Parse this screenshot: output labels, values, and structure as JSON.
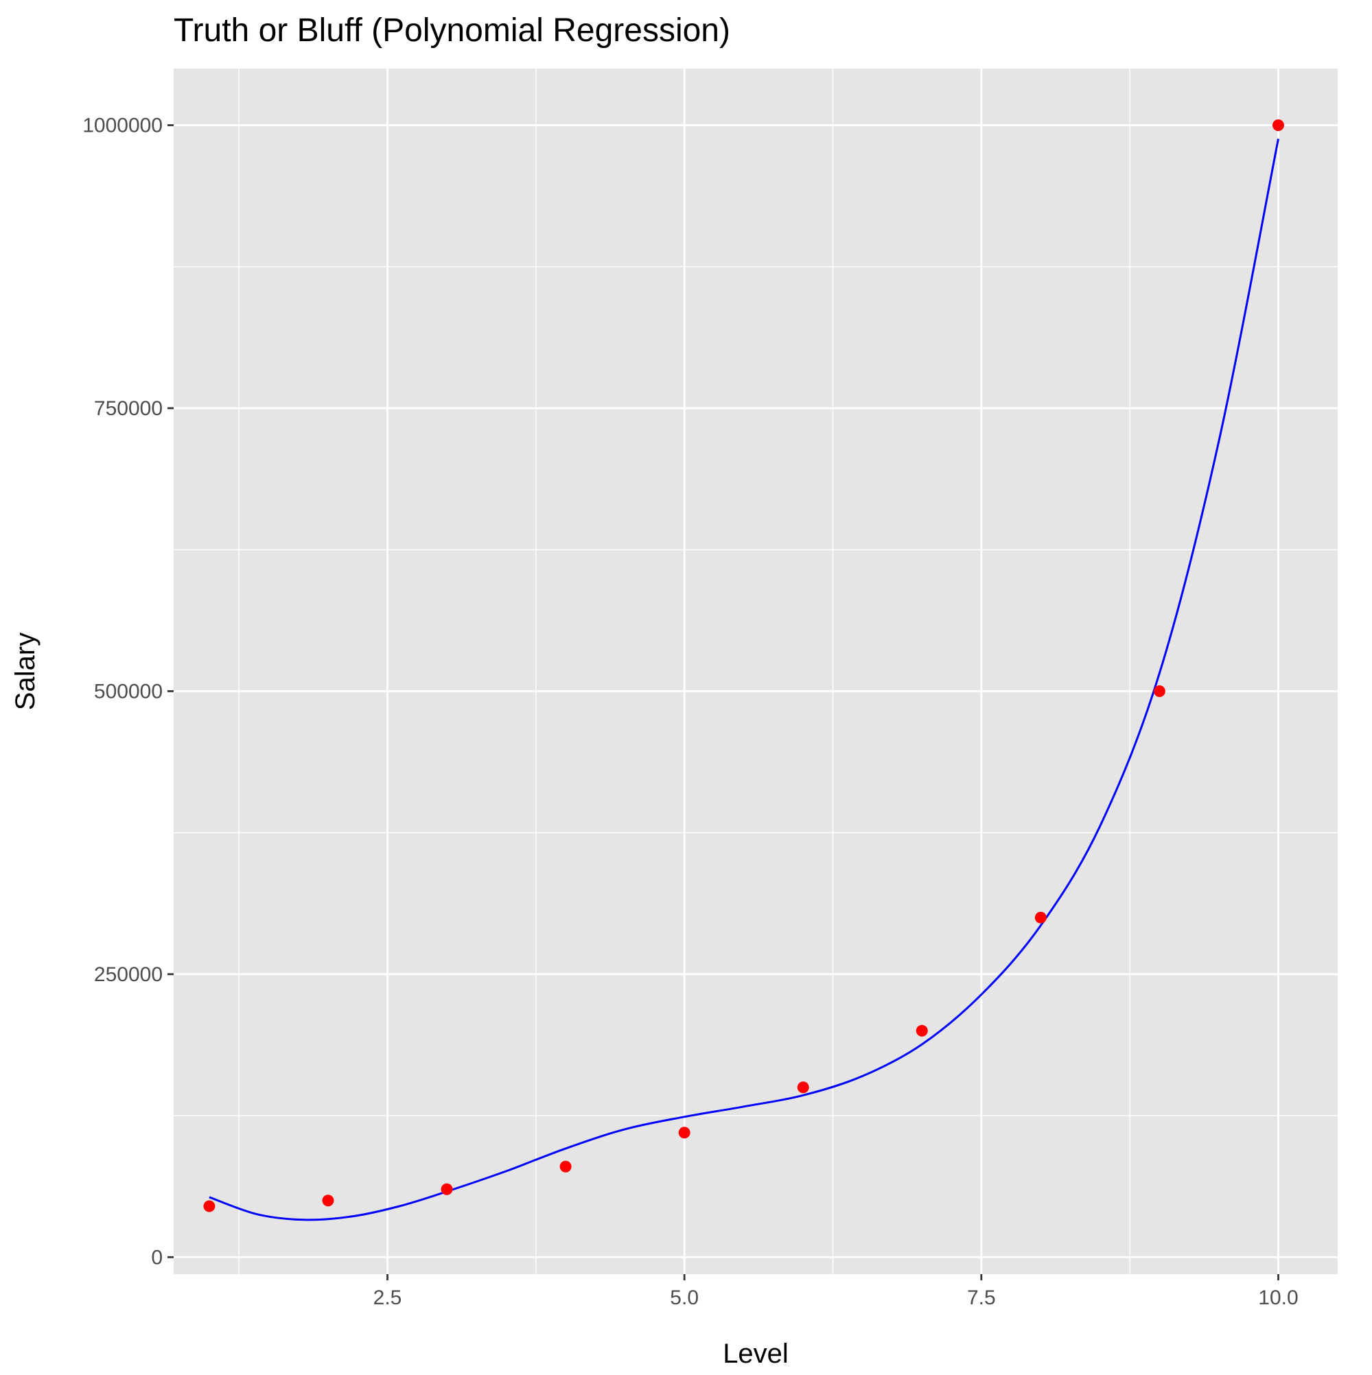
{
  "chart_data": {
    "type": "scatter",
    "title": "Truth or Bluff (Polynomial Regression)",
    "xlabel": "Level",
    "ylabel": "Salary",
    "xlim": [
      0.7,
      10.5
    ],
    "ylim": [
      -15000,
      1050000
    ],
    "x_ticks": [
      {
        "value": 2.5,
        "label": "2.5"
      },
      {
        "value": 5.0,
        "label": "5.0"
      },
      {
        "value": 7.5,
        "label": "7.5"
      },
      {
        "value": 10.0,
        "label": "10.0"
      }
    ],
    "x_minor_ticks": [
      1.25,
      3.75,
      6.25,
      8.75
    ],
    "y_ticks": [
      {
        "value": 0,
        "label": "0"
      },
      {
        "value": 250000,
        "label": "250000"
      },
      {
        "value": 500000,
        "label": "500000"
      },
      {
        "value": 750000,
        "label": "750000"
      },
      {
        "value": 1000000,
        "label": "1000000"
      }
    ],
    "y_minor_ticks": [
      125000,
      375000,
      625000,
      875000
    ],
    "grid": true,
    "panel_background": "#e5e5e5",
    "grid_color": "#ffffff",
    "series": [
      {
        "type": "scatter",
        "color": "#ff0000",
        "x": [
          1,
          2,
          3,
          4,
          5,
          6,
          7,
          8,
          9,
          10
        ],
        "y": [
          45000,
          50000,
          60000,
          80000,
          110000,
          150000,
          200000,
          300000,
          500000,
          1000000
        ]
      },
      {
        "type": "line",
        "color": "#0000ff",
        "x": [
          1,
          1.4,
          1.8,
          2.2,
          2.6,
          3,
          3.5,
          4,
          4.5,
          5,
          5.5,
          6,
          6.5,
          7,
          7.5,
          8,
          8.5,
          9,
          9.5,
          10
        ],
        "y": [
          53000,
          38000,
          33000,
          36000,
          45000,
          58000,
          76000,
          96000,
          113000,
          124000,
          133000,
          143000,
          160000,
          188000,
          232000,
          293000,
          381000,
          516000,
          721000,
          988000
        ]
      }
    ]
  }
}
